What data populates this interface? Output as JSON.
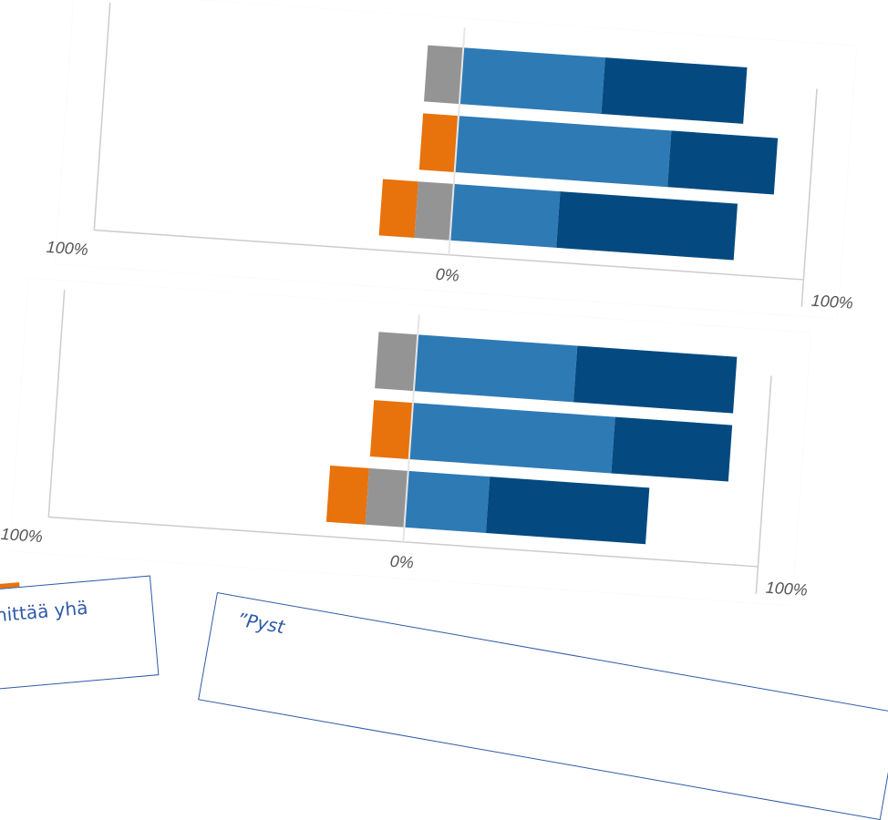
{
  "colors": {
    "orange": "#e8720c",
    "gray": "#949494",
    "blue": "#2e7ab5",
    "navy": "#044a80",
    "axis": "#cccccc",
    "note_text": "#2e5aa8"
  },
  "chart_data": [
    {
      "type": "bar",
      "orientation": "horizontal",
      "stacked": "diverging",
      "xlim": [
        -100,
        100
      ],
      "tick_labels": [
        "100%",
        "0%",
        "100%"
      ],
      "series": [
        {
          "values": [
            0,
            10,
            10
          ]
        },
        {
          "values": [
            10,
            0,
            10
          ]
        },
        {
          "values": [
            40,
            60,
            30
          ]
        },
        {
          "values": [
            40,
            30,
            50
          ]
        }
      ]
    },
    {
      "type": "bar",
      "orientation": "horizontal",
      "stacked": "diverging",
      "xlim": [
        -100,
        100
      ],
      "tick_labels": [
        "100%",
        "0%",
        "100%"
      ],
      "series": [
        {
          "values": [
            0,
            11,
            11
          ]
        },
        {
          "values": [
            11,
            0,
            11
          ]
        },
        {
          "values": [
            45,
            57,
            23
          ]
        },
        {
          "values": [
            45,
            33,
            45
          ]
        }
      ]
    }
  ],
  "notes": {
    "left_text": "nittää yhä",
    "right_text": "”Pyst"
  }
}
